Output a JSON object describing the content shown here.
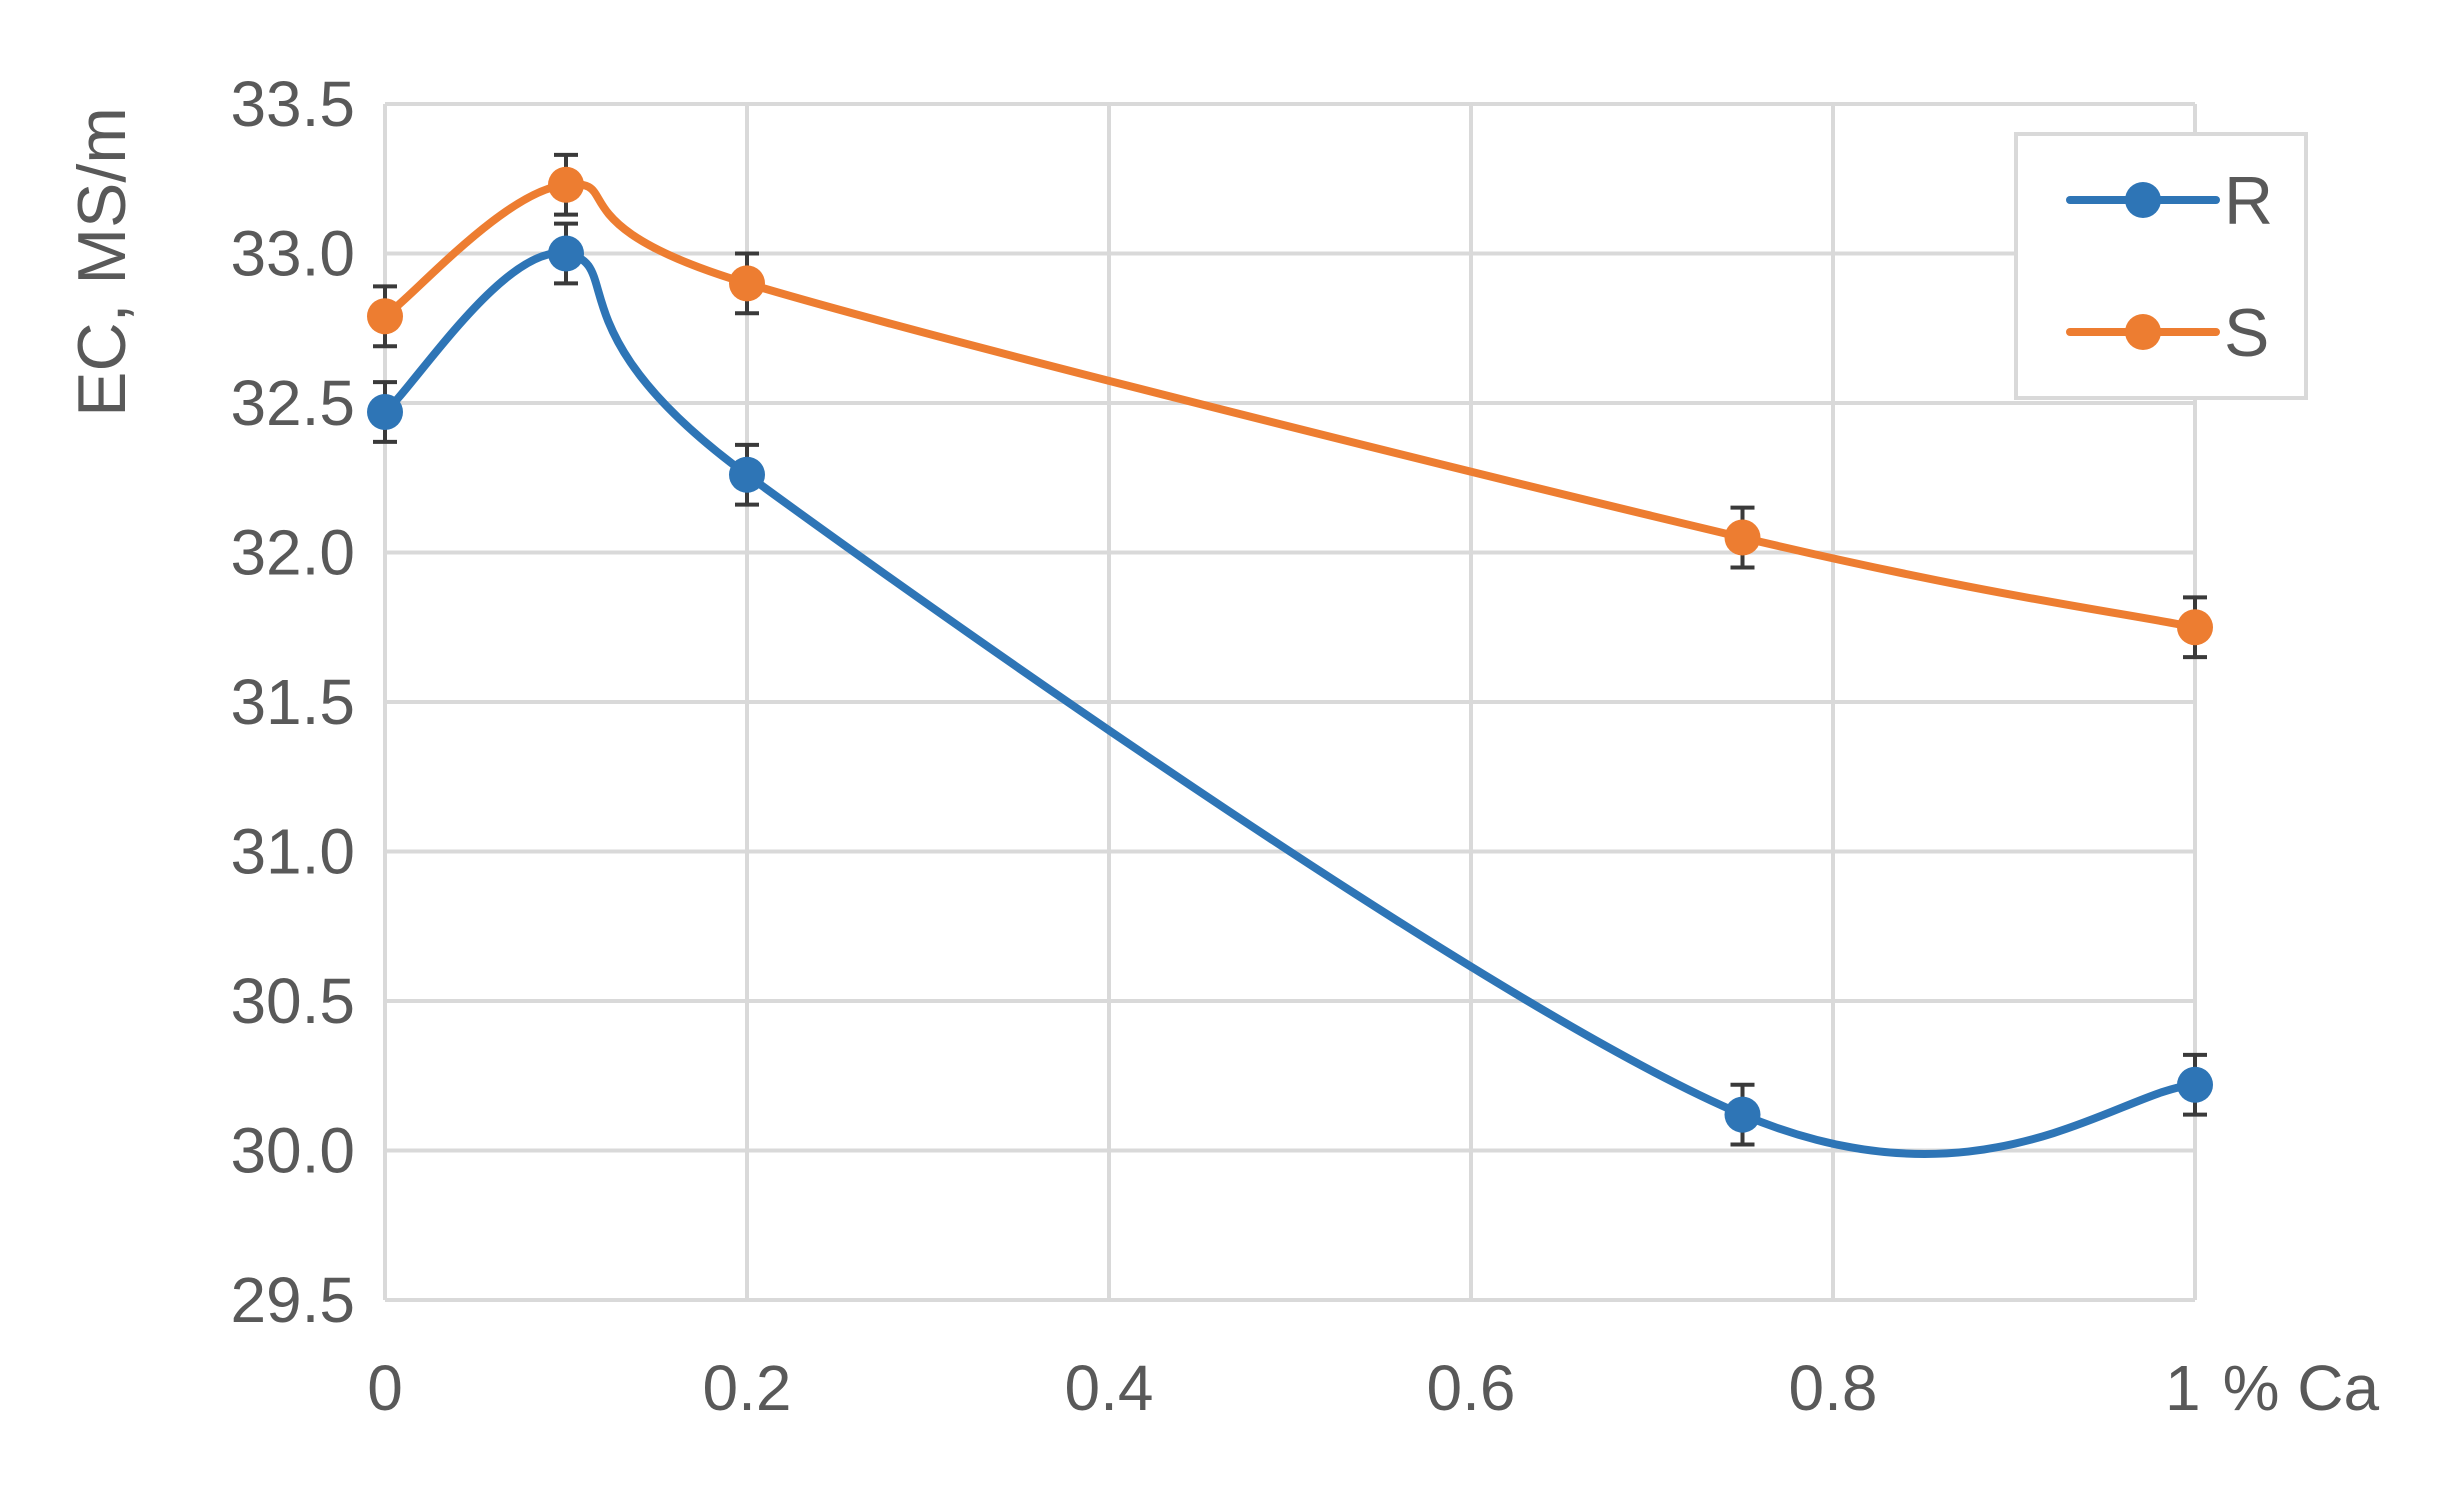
{
  "chart_data": {
    "type": "line",
    "title": "",
    "xlabel": "% Ca",
    "ylabel": "EC, MS/m",
    "x": [
      0,
      0.1,
      0.2,
      0.75,
      1
    ],
    "xlim": [
      0,
      1
    ],
    "ylim": [
      29.5,
      33.5
    ],
    "xticks": [
      0,
      0.2,
      0.4,
      0.6,
      0.8,
      1
    ],
    "xtick_labels": [
      "0",
      "0.2",
      "0.4",
      "0.6",
      "0.8",
      "1"
    ],
    "yticks": [
      29.5,
      30.0,
      30.5,
      31.0,
      31.5,
      32.0,
      32.5,
      33.0,
      33.5
    ],
    "ytick_labels": [
      "29.5",
      "30.0",
      "30.5",
      "31.0",
      "31.5",
      "32.0",
      "32.5",
      "33.0",
      "33.5"
    ],
    "grid": true,
    "smooth": true,
    "legend_position": "top-right",
    "series": [
      {
        "name": "R",
        "color": "#2e75b6",
        "values": [
          32.47,
          33.0,
          32.26,
          30.12,
          30.22
        ],
        "error": [
          0.1,
          0.1,
          0.1,
          0.1,
          0.1
        ]
      },
      {
        "name": "S",
        "color": "#ed7d31",
        "values": [
          32.79,
          33.23,
          32.9,
          32.05,
          31.75
        ],
        "error": [
          0.1,
          0.1,
          0.1,
          0.1,
          0.1
        ]
      }
    ]
  }
}
